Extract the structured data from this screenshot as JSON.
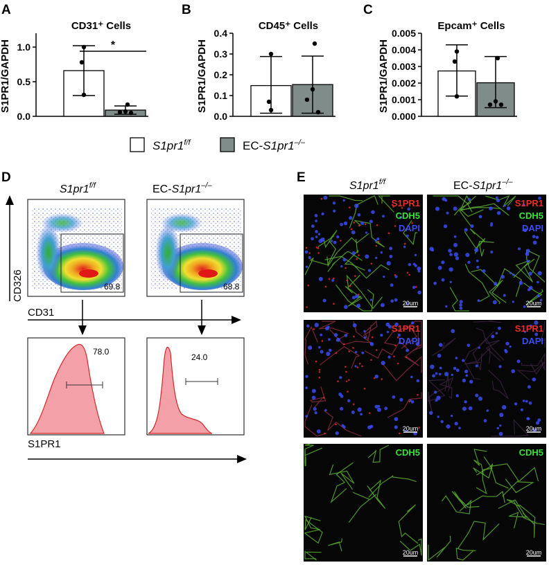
{
  "panel_letters": [
    "A",
    "B",
    "C",
    "D",
    "E"
  ],
  "legend": {
    "wt_label": "S1pr1",
    "wt_sup": "f/f",
    "ko_prefix": "EC-",
    "ko_label": "S1pr1",
    "ko_sup": "–/–"
  },
  "chart_data": [
    {
      "type": "bar",
      "title": "CD31⁺ Cells",
      "ylabel": "S1PR1/GAPDH",
      "ylim": [
        0,
        1.2
      ],
      "yticks": [
        "0.0",
        "0.5",
        "1.0"
      ],
      "ytick_values": [
        0,
        0.5,
        1.0
      ],
      "series": [
        {
          "value": 0.66,
          "err_low": 0.3,
          "err_high": 1.02,
          "points": [
            1.0,
            0.78,
            0.31
          ],
          "color": "#ffffff"
        },
        {
          "value": 0.09,
          "err_low": 0.03,
          "err_high": 0.15,
          "points": [
            0.17,
            0.07,
            0.06,
            0.05
          ],
          "color": "#7f8c8a"
        }
      ],
      "significance": "*"
    },
    {
      "type": "bar",
      "title": "CD45⁺ Cells",
      "ylabel": "S1PR1/GAPDH",
      "ylim": [
        0,
        0.4
      ],
      "yticks": [
        "0.0",
        "0.1",
        "0.2",
        "0.3",
        "0.4"
      ],
      "ytick_values": [
        0,
        0.1,
        0.2,
        0.3,
        0.4
      ],
      "series": [
        {
          "value": 0.148,
          "err_low": 0.015,
          "err_high": 0.288,
          "points": [
            0.3,
            0.07,
            0.03
          ],
          "color": "#ffffff"
        },
        {
          "value": 0.153,
          "err_low": 0.015,
          "err_high": 0.29,
          "points": [
            0.35,
            0.13,
            0.08,
            0.02
          ],
          "color": "#7f8c8a"
        }
      ]
    },
    {
      "type": "bar",
      "title": "Epcam⁺ Cells",
      "ylabel": "S1PR1/GAPDH",
      "ylim": [
        0,
        0.005
      ],
      "yticks": [
        "0.000",
        "0.001",
        "0.002",
        "0.003",
        "0.004",
        "0.005"
      ],
      "ytick_values": [
        0,
        0.001,
        0.002,
        0.003,
        0.004,
        0.005
      ],
      "series": [
        {
          "value": 0.00273,
          "err_low": 0.00122,
          "err_high": 0.0043,
          "points": [
            0.0039,
            0.0033,
            0.0012
          ],
          "color": "#ffffff"
        },
        {
          "value": 0.00202,
          "err_low": 0.00052,
          "err_high": 0.0036,
          "points": [
            0.0035,
            0.0009,
            0.0007,
            0.0007
          ],
          "color": "#7f8c8a"
        }
      ]
    }
  ],
  "flow": {
    "col_wt": "S1pr1",
    "col_wt_sup": "f/f",
    "col_ko_prefix": "EC-",
    "col_ko": "S1pr1",
    "col_ko_sup": "–/–",
    "y_axis": "CD326",
    "x_axis": "CD31",
    "gate_wt": "69.8",
    "gate_ko": "68.8",
    "hist_axis": "S1PR1",
    "hist_wt": "78.0",
    "hist_ko": "24.0"
  },
  "micro": {
    "col_wt": "S1pr1",
    "col_wt_sup": "f/f",
    "col_ko_prefix": "EC-",
    "col_ko": "S1pr1",
    "col_ko_sup": "–/–",
    "row1": [
      "S1PR1",
      "CDH5",
      "DAPI"
    ],
    "row2": [
      "S1PR1",
      "DAPI"
    ],
    "row3": [
      "CDH5"
    ],
    "scale": "20um",
    "colors": {
      "s1pr1": "#e8302a",
      "cdh5": "#3be03b",
      "dapi": "#3a4cf0"
    }
  }
}
